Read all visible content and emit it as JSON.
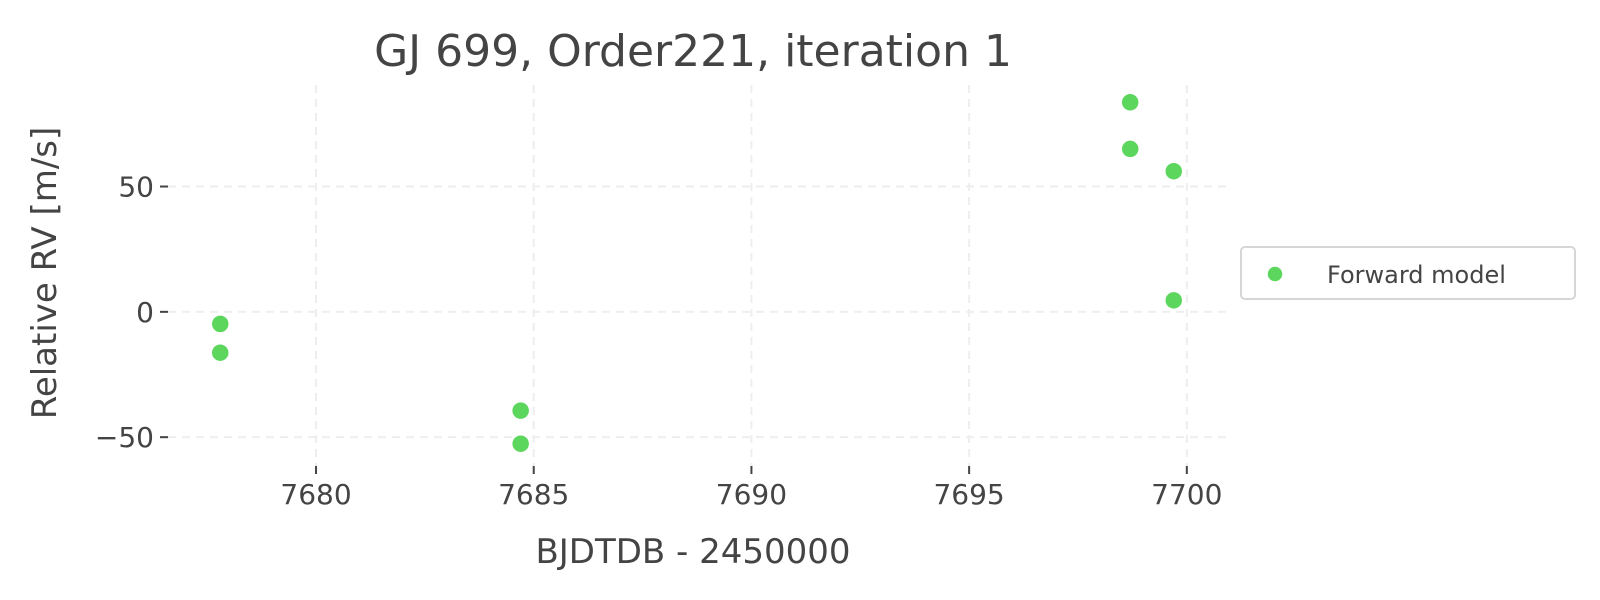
{
  "chart_data": {
    "type": "scatter",
    "title": "GJ 699, Order221, iteration 1",
    "xlabel": "BJDTDB - 2450000",
    "ylabel": "Relative RV [m/s]",
    "xlim": [
      7676.6,
      7700.9
    ],
    "ylim": [
      -61.5,
      90.5
    ],
    "xticks": [
      7680,
      7685,
      7690,
      7695,
      7700
    ],
    "xtick_labels": [
      "7680",
      "7685",
      "7690",
      "7695",
      "7700"
    ],
    "yticks": [
      -50,
      0,
      50
    ],
    "ytick_labels": [
      "−50",
      "0",
      "50"
    ],
    "grid": true,
    "legend_position": "center-right",
    "series": [
      {
        "name": "Forward model",
        "color": "#5dd65d",
        "x": [
          7677.8,
          7677.8,
          7684.7,
          7684.7,
          7698.7,
          7698.7,
          7699.7,
          7699.7
        ],
        "y": [
          -4.8,
          -16.3,
          -39.4,
          -52.6,
          83.6,
          65.0,
          56.1,
          4.6
        ]
      }
    ]
  }
}
